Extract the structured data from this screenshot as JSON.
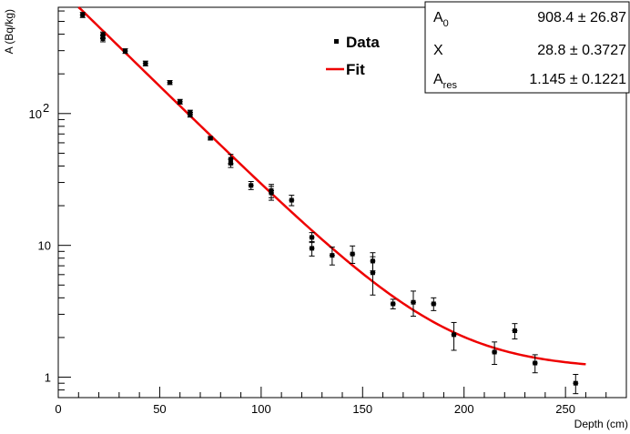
{
  "chart_data": {
    "type": "scatter",
    "xlabel": "Depth (cm)",
    "ylabel": "A (Bq/kg)",
    "xlim": [
      0,
      280
    ],
    "ylim": [
      0.7,
      640
    ],
    "yscale": "log",
    "grid": false,
    "x_ticks": [
      "0",
      "50",
      "100",
      "150",
      "200",
      "250"
    ],
    "y_ticks": [
      {
        "value": 1,
        "label": "1"
      },
      {
        "value": 10,
        "label": "10"
      },
      {
        "value": 100,
        "label": "10",
        "exponent": "2"
      }
    ],
    "colors": {
      "data": "#000000",
      "fit": "#ee0000"
    },
    "legend": {
      "placement": "top-center",
      "entries": [
        {
          "label": "Data",
          "marker": "square",
          "color": "#000000"
        },
        {
          "label": "Fit",
          "marker": "line",
          "color": "#ee0000"
        }
      ]
    },
    "stats_box": {
      "placement": "top-right",
      "rows": [
        {
          "name": "A",
          "sub": "0",
          "value": "908.4 ± 26.87"
        },
        {
          "name": "X",
          "sub": "",
          "value": "28.8 ± 0.3727"
        },
        {
          "name": "A",
          "sub": "res",
          "value": "1.145 ± 0.1221"
        }
      ]
    },
    "series": [
      {
        "name": "Data",
        "kind": "points",
        "points": [
          {
            "x": 12,
            "y": 560,
            "err": 25
          },
          {
            "x": 22,
            "y": 395,
            "err": 20
          },
          {
            "x": 22,
            "y": 370,
            "err": 20
          },
          {
            "x": 33,
            "y": 298,
            "err": 12
          },
          {
            "x": 43,
            "y": 240,
            "err": 10
          },
          {
            "x": 55,
            "y": 172,
            "err": 6
          },
          {
            "x": 60,
            "y": 123,
            "err": 5
          },
          {
            "x": 65,
            "y": 102,
            "err": 4
          },
          {
            "x": 65,
            "y": 98,
            "err": 4
          },
          {
            "x": 75,
            "y": 65,
            "err": 2
          },
          {
            "x": 85,
            "y": 45,
            "err": 4
          },
          {
            "x": 85,
            "y": 42,
            "err": 3
          },
          {
            "x": 95,
            "y": 28.5,
            "err": 2
          },
          {
            "x": 105,
            "y": 26,
            "err": 3
          },
          {
            "x": 105,
            "y": 25,
            "err": 3
          },
          {
            "x": 115,
            "y": 22,
            "err": 2
          },
          {
            "x": 125,
            "y": 11.5,
            "err": 1
          },
          {
            "x": 125,
            "y": 9.5,
            "err": 1.2
          },
          {
            "x": 135,
            "y": 8.4,
            "err": 1.3
          },
          {
            "x": 145,
            "y": 8.6,
            "err": 1.3
          },
          {
            "x": 155,
            "y": 7.6,
            "err": 1.2
          },
          {
            "x": 155,
            "y": 6.2,
            "err": 2.0
          },
          {
            "x": 165,
            "y": 3.6,
            "err": 0.3
          },
          {
            "x": 175,
            "y": 3.7,
            "err": 0.8
          },
          {
            "x": 185,
            "y": 3.6,
            "err": 0.4
          },
          {
            "x": 195,
            "y": 2.1,
            "err": 0.5
          },
          {
            "x": 215,
            "y": 1.55,
            "err": 0.3
          },
          {
            "x": 225,
            "y": 2.25,
            "err": 0.3
          },
          {
            "x": 235,
            "y": 1.28,
            "err": 0.2
          },
          {
            "x": 255,
            "y": 0.9,
            "err": 0.15
          }
        ]
      },
      {
        "name": "Fit",
        "kind": "line",
        "model": "A0*exp(-x/X)+Ares",
        "params": {
          "A0": 908.4,
          "X": 28.8,
          "Ares": 1.145
        },
        "x_range": [
          10,
          260
        ]
      }
    ]
  }
}
